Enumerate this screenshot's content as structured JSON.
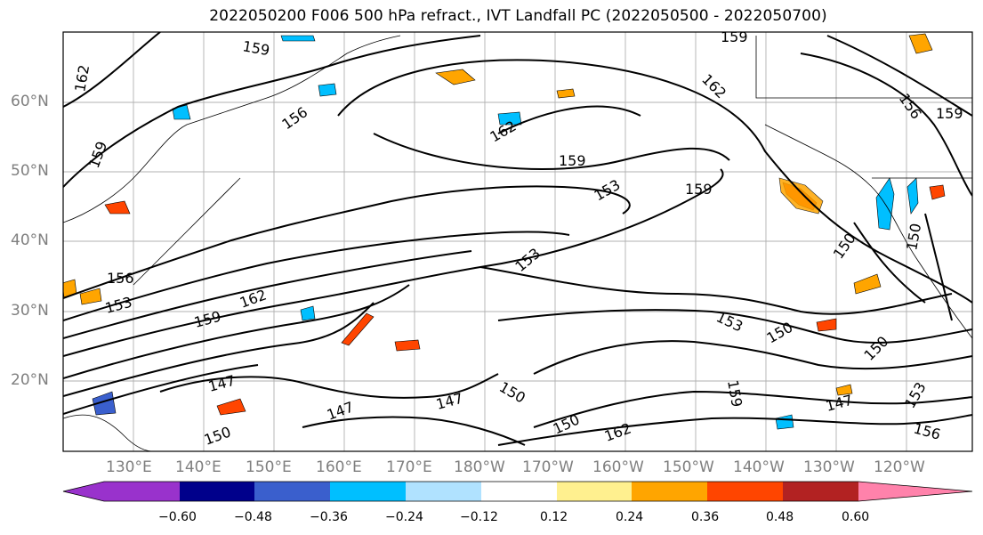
{
  "title": "2022050200 F006 500 hPa refract., IVT Landfall PC (2022050500 - 2022050700)",
  "lat_ticks": [
    "60°N",
    "50°N",
    "40°N",
    "30°N",
    "20°N"
  ],
  "lon_ticks": [
    "130°E",
    "140°E",
    "150°E",
    "160°E",
    "170°E",
    "180°W",
    "170°W",
    "160°W",
    "150°W",
    "140°W",
    "130°W",
    "120°W"
  ],
  "colorbar": {
    "labels": [
      "−0.60",
      "−0.48",
      "−0.36",
      "−0.24",
      "−0.12",
      "0.12",
      "0.24",
      "0.36",
      "0.48",
      "0.60"
    ],
    "colors": [
      "#9932cc",
      "#00008b",
      "#3a5fcd",
      "#00bfff",
      "#b0e2ff",
      "#ffffff",
      "#fff08f",
      "#ffa500",
      "#ff4500",
      "#b22222",
      "#ff82ab"
    ]
  },
  "contour_labels": [
    "159",
    "162",
    "159",
    "159",
    "156",
    "162",
    "159",
    "153",
    "159",
    "162",
    "159",
    "156",
    "153",
    "162",
    "159",
    "156",
    "153",
    "150",
    "150",
    "150",
    "147",
    "147",
    "147",
    "150",
    "150",
    "162",
    "150",
    "147",
    "153",
    "156",
    "153",
    "150",
    "159"
  ]
}
